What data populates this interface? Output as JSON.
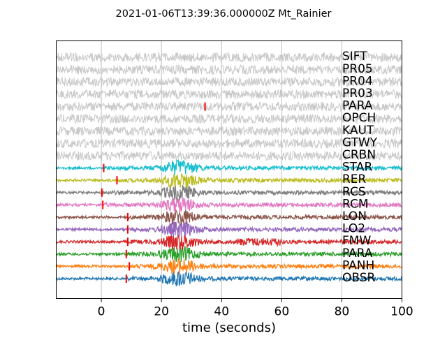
{
  "chart_data": {
    "type": "line",
    "title": "2021-01-06T13:39:36.000000Z Mt_Rainier",
    "xlabel": "time (seconds)",
    "ylabel": "",
    "xlim": [
      -15,
      100
    ],
    "xticks": [
      0,
      20,
      40,
      60,
      80,
      100
    ],
    "grid": "vertical",
    "series": [
      {
        "name": "OBSR",
        "color": "#1f77b4",
        "pick": 8.3
      },
      {
        "name": "PANH",
        "color": "#ff7f0e",
        "pick": 9.3
      },
      {
        "name": "PARA",
        "color": "#2ca02c",
        "pick": 8.3
      },
      {
        "name": "FMW",
        "color": "#d62728",
        "pick": 8.8
      },
      {
        "name": "LO2",
        "color": "#9467bd",
        "pick": 8.8
      },
      {
        "name": "LON",
        "color": "#8c564b",
        "pick": 8.8
      },
      {
        "name": "RCM",
        "color": "#e377c2",
        "pick": 0.5
      },
      {
        "name": "RCS",
        "color": "#7f7f7f",
        "pick": 0.2
      },
      {
        "name": "RER",
        "color": "#bcbd22",
        "pick": 5.2
      },
      {
        "name": "STAR",
        "color": "#17becf",
        "pick": 0.8
      },
      {
        "name": "CRBN",
        "color": "#c8c8c8",
        "pick": null
      },
      {
        "name": "GTWY",
        "color": "#c8c8c8",
        "pick": null
      },
      {
        "name": "KAUT",
        "color": "#c8c8c8",
        "pick": null
      },
      {
        "name": "OPCH",
        "color": "#c8c8c8",
        "pick": null
      },
      {
        "name": "PARA",
        "color": "#c8c8c8",
        "pick": 34.5
      },
      {
        "name": "PR03",
        "color": "#c8c8c8",
        "pick": null
      },
      {
        "name": "PR04",
        "color": "#c8c8c8",
        "pick": null
      },
      {
        "name": "PR05",
        "color": "#c8c8c8",
        "pick": null
      },
      {
        "name": "SIFT",
        "color": "#c8c8c8",
        "pick": null
      }
    ],
    "pick_color": "#ff0000"
  }
}
